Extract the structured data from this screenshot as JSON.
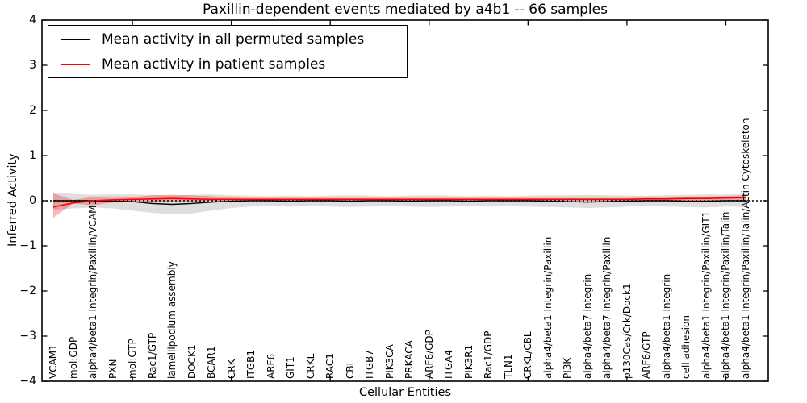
{
  "title": "Paxillin-dependent events mediated by a4b1 -- 66 samples",
  "legend": {
    "position": "upper left",
    "items": [
      {
        "label": "Mean activity in all permuted samples",
        "color": "#000000"
      },
      {
        "label": "Mean activity in patient samples",
        "color": "#ff0000"
      }
    ]
  },
  "chart_data": {
    "type": "line",
    "title": "Paxillin-dependent events mediated by a4b1 -- 66 samples",
    "xlabel": "Cellular Entities",
    "ylabel": "Inferred Activity",
    "ylim": [
      -4,
      4
    ],
    "yticks": [
      -4,
      -3,
      -2,
      -1,
      0,
      1,
      2,
      3,
      4
    ],
    "x_major_tick_indices": [
      4,
      9,
      14,
      19,
      24,
      29,
      34
    ],
    "grid": false,
    "legend_position": "upper left",
    "zero_line": {
      "style": "dotted",
      "color": "#000000",
      "y": 0
    },
    "categories": [
      "VCAM1",
      "mol:GDP",
      "alpha4/beta1 Integrin/Paxillin/VCAM1",
      "PXN",
      "mol:GTP",
      "Rac1/GTP",
      "lamellipodium assembly",
      "DOCK1",
      "BCAR1",
      "CRK",
      "ITGB1",
      "ARF6",
      "GIT1",
      "CRKL",
      "RAC1",
      "CBL",
      "ITGB7",
      "PIK3CA",
      "PRKACA",
      "ARF6/GDP",
      "ITGA4",
      "PIK3R1",
      "Rac1/GDP",
      "TLN1",
      "CRKL/CBL",
      "alpha4/beta1 Integrin/Paxillin",
      "PI3K",
      "alpha4/beta7 Integrin",
      "alpha4/beta7 Integrin/Paxillin",
      "p130Cas/Crk/Dock1",
      "ARF6/GTP",
      "alpha4/beta1 Integrin",
      "cell adhesion",
      "alpha4/beta1 Integrin/Paxillin/GIT1",
      "alpha4/beta1 Integrin/Paxillin/Talin",
      "alpha4/beta1 Integrin/Paxillin/Talin/Actin Cytoskeleton"
    ],
    "series": [
      {
        "name": "Mean activity in all permuted samples",
        "color": "#000000",
        "style": "solid",
        "values": [
          0.0,
          0.0,
          0.0,
          -0.01,
          -0.02,
          -0.06,
          -0.08,
          -0.06,
          -0.03,
          -0.01,
          0.0,
          0.0,
          -0.01,
          0.0,
          0.0,
          -0.01,
          0.0,
          0.0,
          -0.01,
          0.0,
          0.0,
          -0.01,
          0.0,
          0.0,
          0.0,
          -0.01,
          -0.02,
          -0.03,
          -0.02,
          -0.01,
          0.0,
          0.0,
          -0.01,
          -0.01,
          0.0,
          0.0
        ]
      },
      {
        "name": "Mean activity in patient samples",
        "color": "#ff0000",
        "style": "solid",
        "values": [
          -0.14,
          -0.05,
          0.0,
          0.02,
          0.03,
          0.04,
          0.05,
          0.04,
          0.03,
          0.03,
          0.03,
          0.03,
          0.03,
          0.03,
          0.03,
          0.03,
          0.03,
          0.03,
          0.03,
          0.03,
          0.03,
          0.03,
          0.03,
          0.03,
          0.03,
          0.03,
          0.03,
          0.03,
          0.03,
          0.03,
          0.04,
          0.04,
          0.05,
          0.05,
          0.06,
          0.07
        ]
      }
    ],
    "bands": [
      {
        "name": "permuted-samples-range",
        "color": "rgba(0,0,0,0.13)",
        "lower": [
          -0.2,
          -0.17,
          -0.15,
          -0.17,
          -0.22,
          -0.27,
          -0.3,
          -0.28,
          -0.22,
          -0.16,
          -0.13,
          -0.12,
          -0.13,
          -0.12,
          -0.13,
          -0.14,
          -0.13,
          -0.12,
          -0.13,
          -0.14,
          -0.13,
          -0.12,
          -0.13,
          -0.12,
          -0.13,
          -0.14,
          -0.15,
          -0.16,
          -0.15,
          -0.13,
          -0.12,
          -0.13,
          -0.14,
          -0.15,
          -0.13,
          -0.14
        ],
        "upper": [
          0.18,
          0.15,
          0.13,
          0.14,
          0.14,
          0.13,
          0.12,
          0.13,
          0.14,
          0.12,
          0.11,
          0.1,
          0.11,
          0.1,
          0.11,
          0.12,
          0.11,
          0.1,
          0.11,
          0.12,
          0.11,
          0.1,
          0.11,
          0.1,
          0.11,
          0.12,
          0.12,
          0.13,
          0.12,
          0.11,
          0.11,
          0.12,
          0.13,
          0.14,
          0.14,
          0.15
        ]
      },
      {
        "name": "patient-samples-range",
        "color": "rgba(255,0,0,0.28)",
        "lower": [
          -0.38,
          -0.06,
          -0.1,
          -0.04,
          -0.03,
          -0.02,
          -0.02,
          -0.02,
          -0.01,
          0.0,
          0.0,
          0.0,
          0.0,
          0.0,
          0.0,
          0.0,
          0.0,
          0.0,
          0.0,
          0.0,
          0.0,
          0.0,
          0.0,
          0.0,
          0.0,
          0.0,
          0.0,
          0.0,
          0.0,
          0.0,
          0.0,
          0.0,
          0.0,
          0.0,
          0.0,
          -0.02
        ],
        "upper": [
          0.16,
          0.02,
          0.08,
          0.06,
          0.08,
          0.12,
          0.13,
          0.12,
          0.1,
          0.07,
          0.06,
          0.06,
          0.06,
          0.06,
          0.06,
          0.06,
          0.06,
          0.06,
          0.06,
          0.06,
          0.06,
          0.06,
          0.06,
          0.06,
          0.06,
          0.06,
          0.06,
          0.06,
          0.06,
          0.06,
          0.07,
          0.07,
          0.08,
          0.09,
          0.1,
          0.12
        ]
      }
    ]
  }
}
